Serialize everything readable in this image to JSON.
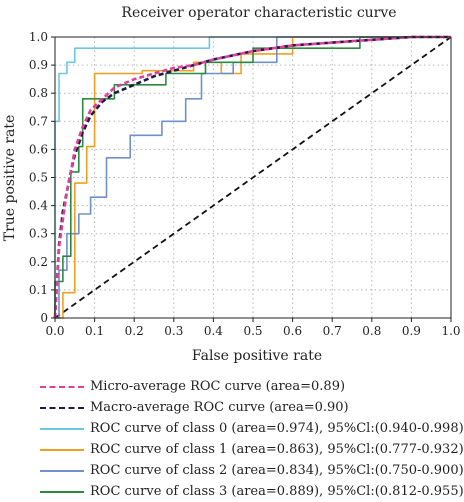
{
  "chart_data": {
    "type": "line",
    "title": "Receiver operator characteristic curve",
    "xlabel": "False positive rate",
    "ylabel": "True positive rate",
    "xlim": [
      0,
      1
    ],
    "ylim": [
      0,
      1
    ],
    "xticks": [
      "0.0",
      "0.1",
      "0.2",
      "0.3",
      "0.4",
      "0.5",
      "0.6",
      "0.7",
      "0.8",
      "0.9",
      "1.0"
    ],
    "yticks": [
      "0",
      "0.1",
      "0.2",
      "0.3",
      "0.4",
      "0.5",
      "0.6",
      "0.7",
      "0.8",
      "0.9",
      "1.0"
    ],
    "grid": true,
    "legend_position": "below",
    "series": [
      {
        "name": "Micro-average ROC curve (area=0.89)",
        "color": "#e0409a",
        "style": "dashed",
        "x": [
          0,
          0.01,
          0.02,
          0.03,
          0.04,
          0.05,
          0.07,
          0.09,
          0.12,
          0.15,
          0.2,
          0.25,
          0.3,
          0.35,
          0.4,
          0.5,
          0.6,
          0.7,
          0.8,
          0.9,
          1.0
        ],
        "y": [
          0,
          0.25,
          0.35,
          0.45,
          0.52,
          0.6,
          0.68,
          0.74,
          0.78,
          0.82,
          0.85,
          0.87,
          0.89,
          0.9,
          0.92,
          0.95,
          0.97,
          0.98,
          0.99,
          1.0,
          1.0
        ]
      },
      {
        "name": "Macro-average ROC curve (area=0.90)",
        "color": "#1c1c48",
        "style": "dashed",
        "x": [
          0,
          0.01,
          0.02,
          0.03,
          0.04,
          0.05,
          0.07,
          0.09,
          0.12,
          0.15,
          0.2,
          0.25,
          0.3,
          0.35,
          0.4,
          0.5,
          0.6,
          0.7,
          0.8,
          0.9,
          1.0
        ],
        "y": [
          0,
          0.26,
          0.38,
          0.45,
          0.52,
          0.58,
          0.66,
          0.72,
          0.77,
          0.8,
          0.83,
          0.86,
          0.88,
          0.9,
          0.92,
          0.95,
          0.97,
          0.98,
          0.99,
          1.0,
          1.0
        ]
      },
      {
        "name": "ROC curve of class 0 (area=0.974), 95%Cl:(0.940-0.998)",
        "color": "#6cc8e0",
        "style": "solid",
        "x": [
          0,
          0,
          0.01,
          0.01,
          0.03,
          0.03,
          0.05,
          0.05,
          0.39,
          0.39,
          0.56,
          0.56,
          1.0
        ],
        "y": [
          0,
          0.7,
          0.7,
          0.87,
          0.87,
          0.91,
          0.91,
          0.96,
          0.96,
          1.0,
          1.0,
          1.0,
          1.0
        ]
      },
      {
        "name": "ROC curve of class 1 (area=0.863), 95%Cl:(0.777-0.932)",
        "color": "#f0a020",
        "style": "solid",
        "x": [
          0,
          0.02,
          0.02,
          0.05,
          0.05,
          0.06,
          0.08,
          0.08,
          0.1,
          0.1,
          0.22,
          0.22,
          0.35,
          0.35,
          0.42,
          0.42,
          0.47,
          0.47,
          0.6,
          0.6,
          1.0
        ],
        "y": [
          0,
          0,
          0.09,
          0.09,
          0.48,
          0.48,
          0.48,
          0.61,
          0.61,
          0.87,
          0.87,
          0.88,
          0.88,
          0.91,
          0.91,
          0.87,
          0.87,
          0.94,
          0.94,
          1.0,
          1.0
        ]
      },
      {
        "name": "ROC curve of class 2 (area=0.834), 95%Cl:(0.750-0.900)",
        "color": "#7090cc",
        "style": "solid",
        "x": [
          0,
          0.01,
          0.01,
          0.03,
          0.03,
          0.06,
          0.06,
          0.09,
          0.09,
          0.13,
          0.13,
          0.19,
          0.19,
          0.27,
          0.27,
          0.33,
          0.33,
          0.37,
          0.37,
          0.45,
          0.45,
          0.56,
          0.56,
          1.0
        ],
        "y": [
          0,
          0,
          0.17,
          0.17,
          0.3,
          0.3,
          0.37,
          0.37,
          0.43,
          0.43,
          0.57,
          0.57,
          0.65,
          0.65,
          0.7,
          0.7,
          0.78,
          0.78,
          0.87,
          0.87,
          0.91,
          0.91,
          1.0,
          1.0
        ]
      },
      {
        "name": "ROC curve of class 3 (area=0.889), 95%Cl:(0.812-0.955)",
        "color": "#2a8a40",
        "style": "solid",
        "x": [
          0,
          0,
          0.02,
          0.02,
          0.04,
          0.04,
          0.06,
          0.06,
          0.07,
          0.07,
          0.15,
          0.15,
          0.28,
          0.28,
          0.38,
          0.38,
          0.5,
          0.5,
          0.77,
          0.77,
          1.0
        ],
        "y": [
          0,
          0.13,
          0.13,
          0.22,
          0.22,
          0.52,
          0.52,
          0.61,
          0.61,
          0.78,
          0.78,
          0.83,
          0.83,
          0.87,
          0.87,
          0.91,
          0.91,
          0.96,
          0.96,
          1.0,
          1.0
        ]
      },
      {
        "name": "",
        "color": "#111111",
        "style": "dashed",
        "x": [
          0,
          1
        ],
        "y": [
          0,
          1
        ]
      }
    ]
  }
}
